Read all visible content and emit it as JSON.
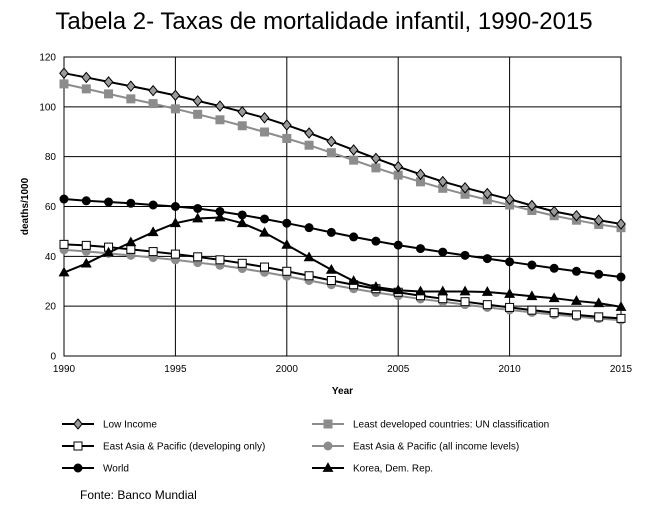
{
  "title": "Tabela 2- Taxas de mortalidade infantil, 1990-2015",
  "source": "Fonte: Banco Mundial",
  "chart_data": {
    "type": "line",
    "xlabel": "Year",
    "ylabel": "deaths/1000",
    "xlim": [
      1990,
      2015
    ],
    "ylim": [
      0,
      120
    ],
    "x_ticks": [
      "1990",
      "1995",
      "2000",
      "2005",
      "2010",
      "2015"
    ],
    "y_ticks": [
      "0",
      "20",
      "40",
      "60",
      "80",
      "100",
      "120"
    ],
    "grid": true,
    "legend_position": "bottom",
    "x": [
      1990,
      1991,
      1992,
      1993,
      1994,
      1995,
      1996,
      1997,
      1998,
      1999,
      2000,
      2001,
      2002,
      2003,
      2004,
      2005,
      2006,
      2007,
      2008,
      2009,
      2010,
      2011,
      2012,
      2013,
      2014,
      2015
    ],
    "series": [
      {
        "name": "Low Income",
        "marker": "diamond",
        "color": "#000000",
        "fill": "#9a9a9a",
        "values": [
          113.5,
          111.8,
          110.0,
          108.3,
          106.5,
          104.6,
          102.4,
          100.3,
          98.0,
          95.6,
          92.7,
          89.5,
          86.1,
          82.7,
          79.3,
          76.0,
          72.9,
          70.0,
          67.5,
          65.2,
          62.9,
          60.4,
          58.0,
          56.3,
          54.5,
          53.0
        ]
      },
      {
        "name": "Least developed countries: UN classification",
        "marker": "square",
        "color": "#8c8c8c",
        "fill": "#8c8c8c",
        "values": [
          109.2,
          107.2,
          105.2,
          103.2,
          101.3,
          99.2,
          97.0,
          94.8,
          92.4,
          89.9,
          87.3,
          84.6,
          81.6,
          78.6,
          75.5,
          72.6,
          69.9,
          67.3,
          64.9,
          62.7,
          60.6,
          58.4,
          56.3,
          54.5,
          52.8,
          51.5
        ]
      },
      {
        "name": "East Asia & Pacific (developing only)",
        "marker": "square-open",
        "color": "#000000",
        "fill": "#ffffff",
        "values": [
          44.8,
          44.4,
          43.7,
          42.8,
          41.9,
          40.9,
          39.8,
          38.6,
          37.2,
          35.7,
          34.0,
          32.2,
          30.3,
          28.6,
          27.0,
          25.6,
          24.2,
          23.0,
          21.8,
          20.6,
          19.5,
          18.4,
          17.4,
          16.5,
          15.7,
          15.1
        ]
      },
      {
        "name": "East Asia & Pacific (all income levels)",
        "marker": "circle",
        "color": "#8c8c8c",
        "fill": "#8c8c8c",
        "values": [
          42.6,
          42.0,
          41.2,
          40.4,
          39.5,
          38.6,
          37.5,
          36.4,
          35.1,
          33.6,
          32.0,
          30.3,
          28.6,
          27.0,
          25.5,
          24.2,
          22.9,
          21.8,
          20.6,
          19.5,
          18.5,
          17.5,
          16.6,
          15.8,
          15.0,
          14.4
        ]
      },
      {
        "name": "World",
        "marker": "circle",
        "color": "#000000",
        "fill": "#000000",
        "values": [
          63.0,
          62.3,
          61.8,
          61.3,
          60.6,
          60.0,
          59.2,
          58.0,
          56.6,
          55.0,
          53.3,
          51.5,
          49.6,
          47.8,
          46.1,
          44.5,
          43.1,
          41.7,
          40.4,
          39.1,
          37.8,
          36.5,
          35.2,
          34.0,
          32.8,
          31.7
        ]
      },
      {
        "name": "Korea, Dem. Rep.",
        "marker": "triangle",
        "color": "#000000",
        "fill": "#000000",
        "values": [
          33.5,
          37.1,
          41.5,
          45.6,
          49.7,
          53.3,
          55.2,
          55.6,
          53.3,
          49.5,
          44.6,
          39.6,
          34.6,
          30.1,
          27.7,
          26.4,
          25.9,
          25.9,
          25.9,
          25.7,
          24.9,
          24.0,
          23.2,
          22.1,
          21.2,
          19.7
        ]
      }
    ]
  }
}
